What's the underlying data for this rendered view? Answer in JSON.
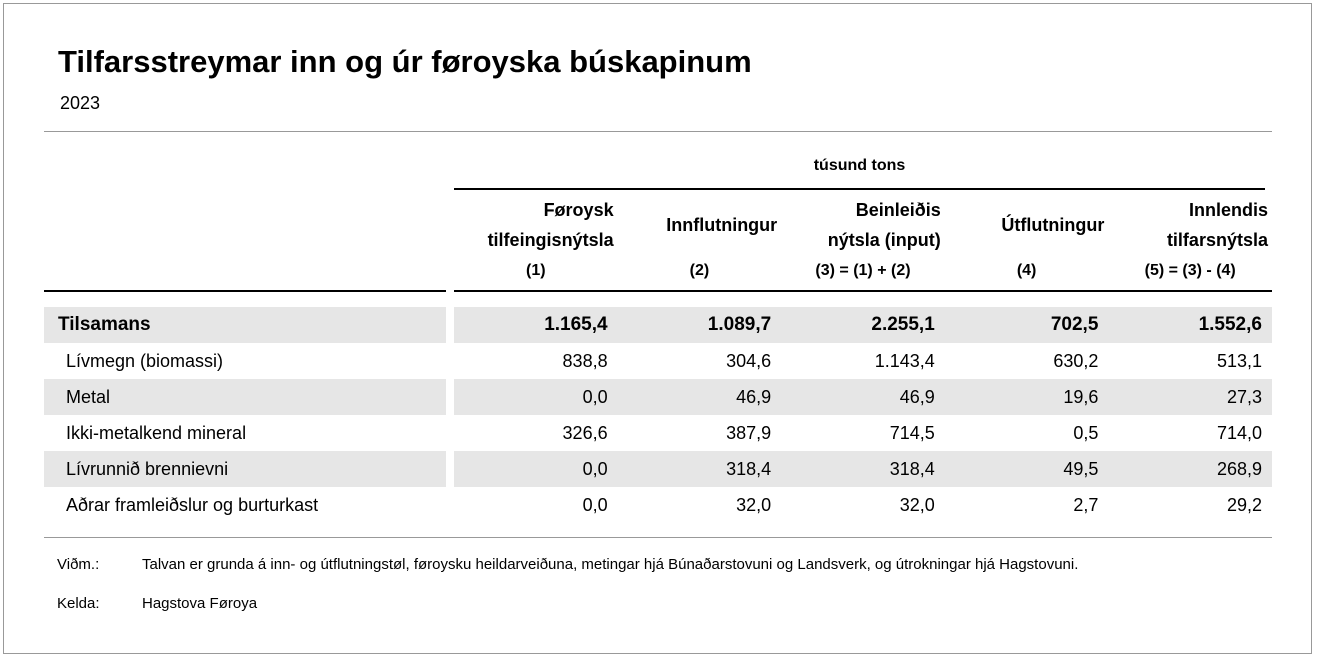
{
  "title": "Tilfarsstreymar inn og úr føroyska búskapinum",
  "year": "2023",
  "unit": "túsund tons",
  "columns": [
    {
      "l1": "Føroysk",
      "l2": "tilfeingisnýtsla",
      "code": "(1)"
    },
    {
      "l1": "Innflutningur",
      "l2": "",
      "code": "(2)"
    },
    {
      "l1": "Beinleiðis",
      "l2": "nýtsla (input)",
      "code": "(3) = (1) + (2)"
    },
    {
      "l1": "Útflutningur",
      "l2": "",
      "code": "(4)"
    },
    {
      "l1": "Innlendis",
      "l2": "tilfarsnýtsla",
      "code": "(5) = (3) - (4)"
    }
  ],
  "rows": [
    {
      "label": "Tilsamans",
      "values": [
        "1.165,4",
        "1.089,7",
        "2.255,1",
        "702,5",
        "1.552,6"
      ]
    },
    {
      "label": "Lívmegn (biomassi)",
      "values": [
        "838,8",
        "304,6",
        "1.143,4",
        "630,2",
        "513,1"
      ]
    },
    {
      "label": "Metal",
      "values": [
        "0,0",
        "46,9",
        "46,9",
        "19,6",
        "27,3"
      ]
    },
    {
      "label": "Ikki-metalkend mineral",
      "values": [
        "326,6",
        "387,9",
        "714,5",
        "0,5",
        "714,0"
      ]
    },
    {
      "label": "Lívrunnið brennievni",
      "values": [
        "0,0",
        "318,4",
        "318,4",
        "49,5",
        "268,9"
      ]
    },
    {
      "label": "Aðrar framleiðslur og burturkast",
      "values": [
        "0,0",
        "32,0",
        "32,0",
        "2,7",
        "29,2"
      ]
    }
  ],
  "notes": {
    "note_label": "Viðm.:",
    "note_text": "Talvan er grunda á inn- og útflutningstøl, føroysku heildarveiðuna, metingar hjá Búnaðarstovuni og Landsverk, og útrokningar hjá Hagstovuni.",
    "source_label": "Kelda:",
    "source_text": "Hagstova Føroya"
  }
}
